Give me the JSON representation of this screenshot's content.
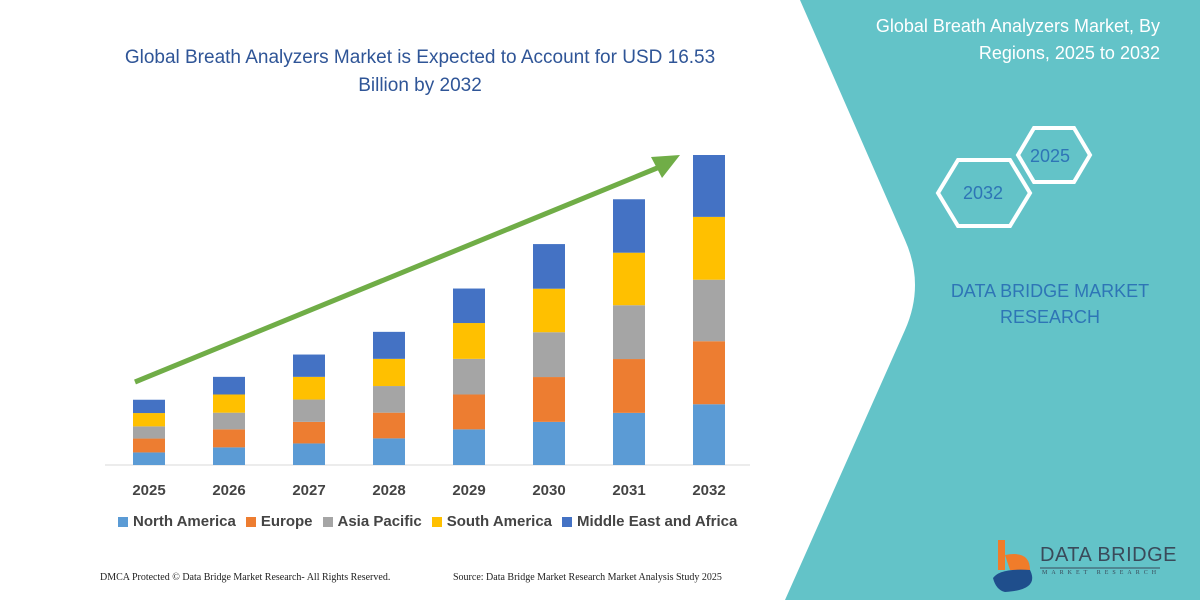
{
  "header": {
    "title": "Global Breath Analyzers Market is Expected to Account for USD 16.53 Billion by 2032"
  },
  "side_panel": {
    "title": "Global Breath Analyzers Market, By Regions, 2025 to 2032",
    "hex_start": "2025",
    "hex_end": "2032",
    "brand_line": "DATA BRIDGE MARKET RESEARCH",
    "logo_text": "DATA BRIDGE",
    "logo_subtext": "MARKET RESEARCH",
    "panel_color": "#63c3c8"
  },
  "footer": {
    "left": "DMCA Protected © Data Bridge Market Research-  All Rights Reserved.",
    "right": "Source: Data Bridge Market Research  Market Analysis Study 2025"
  },
  "chart_data": {
    "type": "bar",
    "stacked": true,
    "title": "Global Breath Analyzers Market is Expected to Account for USD 16.53 Billion by 2032",
    "xlabel": "",
    "ylabel": "",
    "y_axis_visible": false,
    "grid": false,
    "legend_position": "bottom",
    "trend_arrow": true,
    "categories": [
      "2025",
      "2026",
      "2027",
      "2028",
      "2029",
      "2030",
      "2031",
      "2032"
    ],
    "series": [
      {
        "name": "North America",
        "color": "#5b9bd5",
        "values": [
          0.67,
          0.94,
          1.15,
          1.42,
          1.9,
          2.3,
          2.78,
          3.24
        ]
      },
      {
        "name": "Europe",
        "color": "#ed7d31",
        "values": [
          0.74,
          0.96,
          1.15,
          1.37,
          1.86,
          2.39,
          2.87,
          3.36
        ]
      },
      {
        "name": "Asia Pacific",
        "color": "#a5a5a5",
        "values": [
          0.65,
          0.89,
          1.19,
          1.42,
          1.9,
          2.39,
          2.87,
          3.28
        ]
      },
      {
        "name": "South America",
        "color": "#ffc000",
        "values": [
          0.71,
          0.97,
          1.21,
          1.45,
          1.91,
          2.32,
          2.8,
          3.35
        ]
      },
      {
        "name": "Middle East and Africa",
        "color": "#4472c4",
        "values": [
          0.71,
          0.94,
          1.19,
          1.44,
          1.84,
          2.38,
          2.85,
          3.3
        ]
      }
    ],
    "arrow_color": "#70ad47"
  }
}
